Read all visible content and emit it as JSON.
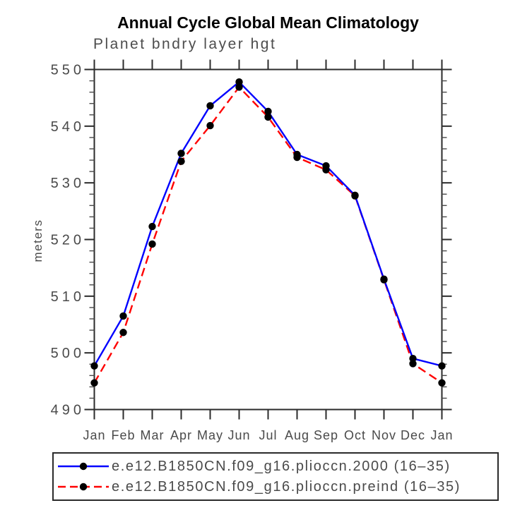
{
  "chart_data": {
    "type": "line",
    "title": "Annual Cycle Global Mean Climatology",
    "subtitle": "Planet bndry layer hgt",
    "xlabel": "",
    "ylabel": "meters",
    "ylim": [
      490,
      550
    ],
    "y_major_step": 10,
    "y_minor_step": 2,
    "grid": false,
    "legend_position": "bottom",
    "categories": [
      "Jan",
      "Feb",
      "Mar",
      "Apr",
      "May",
      "Jun",
      "Jul",
      "Aug",
      "Sep",
      "Oct",
      "Nov",
      "Dec",
      "Jan"
    ],
    "series": [
      {
        "name": "e.e12.B1850CN.f09_g16.plioccn.2000 (16–35)",
        "color": "#0000ff",
        "line_style": "solid",
        "marker": "circle",
        "marker_color": "#000000",
        "values": [
          497.7,
          506.5,
          522.3,
          535.2,
          543.6,
          547.8,
          542.6,
          535.0,
          533.0,
          527.8,
          513.0,
          499.0,
          497.7
        ]
      },
      {
        "name": "e.e12.B1850CN.f09_g16.plioccn.preind (16–35)",
        "color": "#ff0000",
        "line_style": "dashed",
        "marker": "circle",
        "marker_color": "#000000",
        "values": [
          494.7,
          503.6,
          519.2,
          533.8,
          540.1,
          546.9,
          541.6,
          534.5,
          532.3,
          527.7,
          512.9,
          498.1,
          494.7
        ]
      }
    ],
    "axis_color": "#2b2b2b",
    "text_color": "#4a4a4a"
  }
}
